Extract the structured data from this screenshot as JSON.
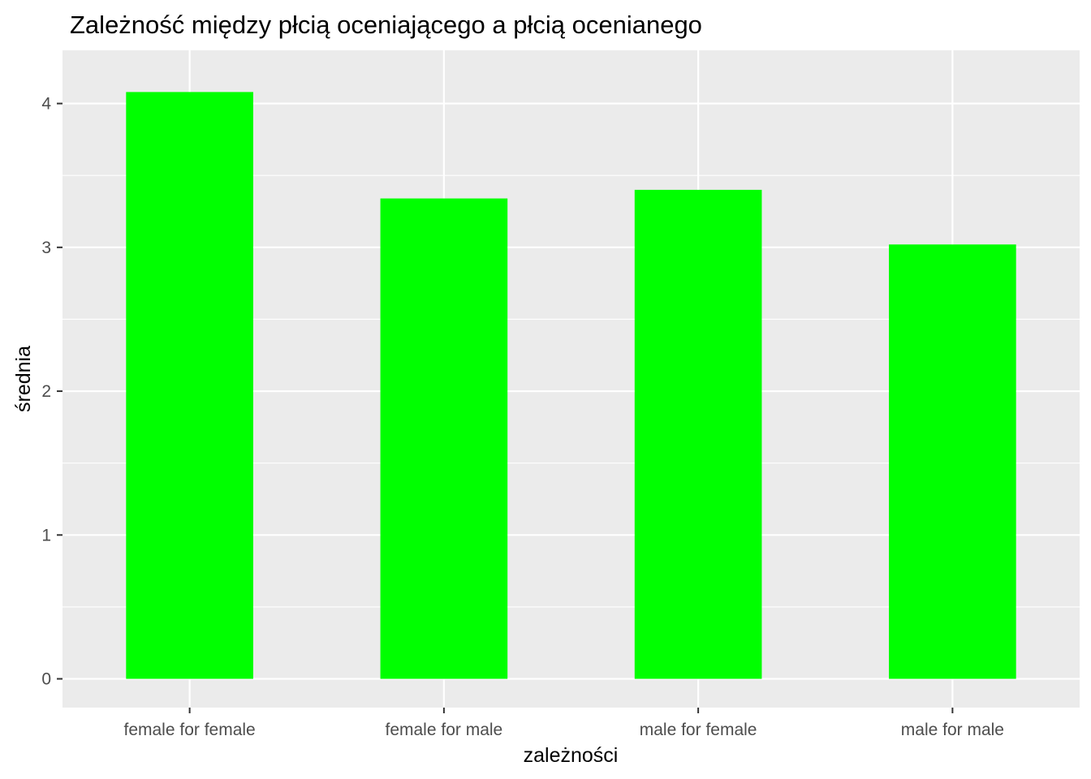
{
  "chart_data": {
    "type": "bar",
    "title": "Zależność między płcią oceniającego a płcią ocenianego",
    "xlabel": "zależności",
    "ylabel": "średnia",
    "categories": [
      "female for female",
      "female for male",
      "male for female",
      "male for male"
    ],
    "values": [
      4.08,
      3.34,
      3.4,
      3.02
    ],
    "ylim": [
      -0.2,
      4.37
    ],
    "yticks": [
      0,
      1,
      2,
      3,
      4
    ],
    "grid": true,
    "legend": "none",
    "colors": {
      "bar": "#00ff00",
      "panel": "#ebebeb",
      "grid": "#ffffff",
      "tick_text": "#4d4d4d",
      "tick_mark": "#333333"
    }
  }
}
